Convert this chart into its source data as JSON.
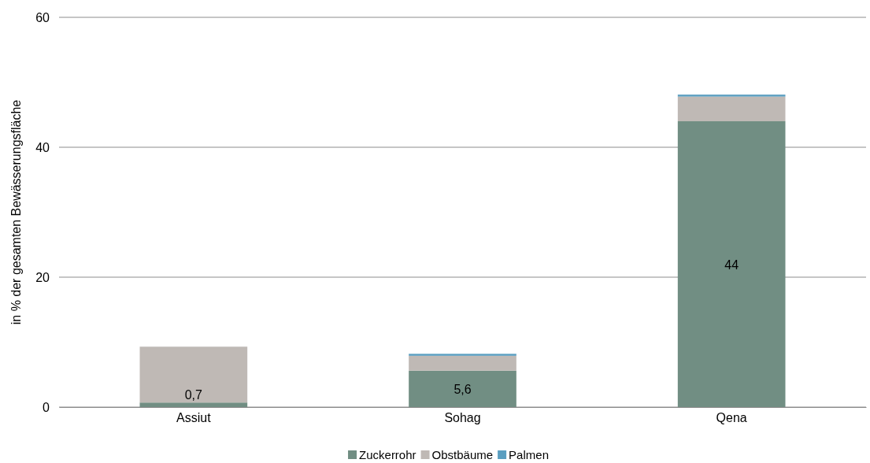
{
  "chart_data": {
    "type": "bar",
    "stacked": true,
    "ylabel": "in % der gesamten Bewässerungsfläche",
    "categories": [
      "Assiut",
      "Sohag",
      "Qena"
    ],
    "series": [
      {
        "name": "Zuckerrohr",
        "color": "#718e83",
        "values": [
          0.7,
          5.6,
          44
        ],
        "value_labels": [
          "0,7",
          "5,6",
          "44"
        ]
      },
      {
        "name": "Obstbäume",
        "color": "#bfb9b5",
        "values": [
          8.6,
          2.3,
          3.8
        ]
      },
      {
        "name": "Palmen",
        "color": "#5a9ec0",
        "values": [
          0,
          0.3,
          0.3
        ]
      }
    ],
    "ylim": [
      0,
      60
    ],
    "yticks": [
      0,
      20,
      40,
      60
    ],
    "grid": "y",
    "legend": "bottom"
  }
}
